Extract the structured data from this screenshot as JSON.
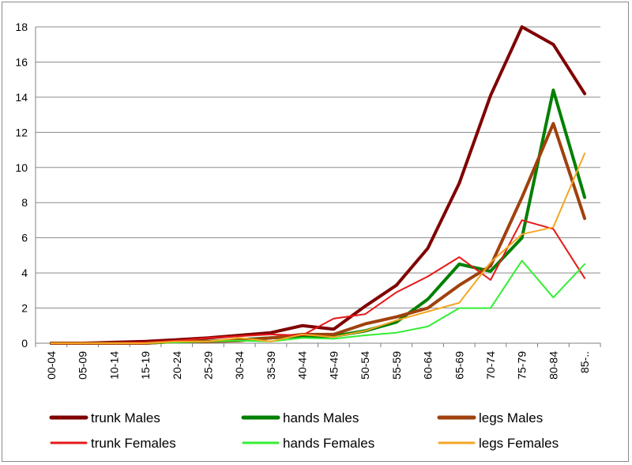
{
  "chart_data": {
    "type": "line",
    "title": "",
    "xlabel": "",
    "ylabel": "",
    "ylim": [
      0,
      18
    ],
    "yticks": [
      0,
      2,
      4,
      6,
      8,
      10,
      12,
      14,
      16,
      18
    ],
    "grid": "horizontal",
    "legend_position": "bottom",
    "categories": [
      "00-04",
      "05-09",
      "10-14",
      "15-19",
      "20-24",
      "25-29",
      "30-34",
      "35-39",
      "40-44",
      "45-49",
      "50-54",
      "55-59",
      "60-64",
      "65-69",
      "70-74",
      "75-79",
      "80-84",
      "85-.."
    ],
    "series": [
      {
        "name": "trunk Males",
        "color": "#800000",
        "width": 4,
        "values": [
          0,
          0,
          0.05,
          0.1,
          0.2,
          0.3,
          0.45,
          0.6,
          1.0,
          0.8,
          2.1,
          3.3,
          5.4,
          9.1,
          14.1,
          18.0,
          17.0,
          14.2
        ]
      },
      {
        "name": "hands Males",
        "color": "#008000",
        "width": 4,
        "values": [
          0,
          0,
          0,
          0,
          0.1,
          0.1,
          0.2,
          0.3,
          0.4,
          0.4,
          0.7,
          1.2,
          2.5,
          4.5,
          4.1,
          6.0,
          14.4,
          8.3
        ]
      },
      {
        "name": "legs Males",
        "color": "#a0410d",
        "width": 4,
        "values": [
          0,
          0,
          0,
          0,
          0.1,
          0.1,
          0.15,
          0.3,
          0.5,
          0.5,
          1.1,
          1.5,
          2.0,
          3.3,
          4.4,
          8.3,
          12.5,
          7.1
        ]
      },
      {
        "name": "trunk Females",
        "color": "#e61919",
        "width": 2,
        "values": [
          0,
          0,
          0,
          0.05,
          0.15,
          0.3,
          0.4,
          0.5,
          0.45,
          1.4,
          1.65,
          2.9,
          3.8,
          4.9,
          3.6,
          7.0,
          6.5,
          3.7
        ]
      },
      {
        "name": "hands Females",
        "color": "#33ee33",
        "width": 2,
        "values": [
          0,
          0,
          0,
          0,
          0.05,
          0.1,
          0.15,
          0.1,
          0.3,
          0.25,
          0.45,
          0.6,
          0.95,
          2.0,
          2.0,
          4.7,
          2.6,
          4.5
        ]
      },
      {
        "name": "legs Females",
        "color": "#f5a623",
        "width": 2,
        "values": [
          0,
          0,
          0,
          0,
          0.1,
          0.1,
          0.3,
          0.1,
          0.5,
          0.35,
          0.7,
          1.3,
          1.8,
          2.3,
          4.6,
          6.2,
          6.6,
          10.8
        ]
      }
    ]
  }
}
